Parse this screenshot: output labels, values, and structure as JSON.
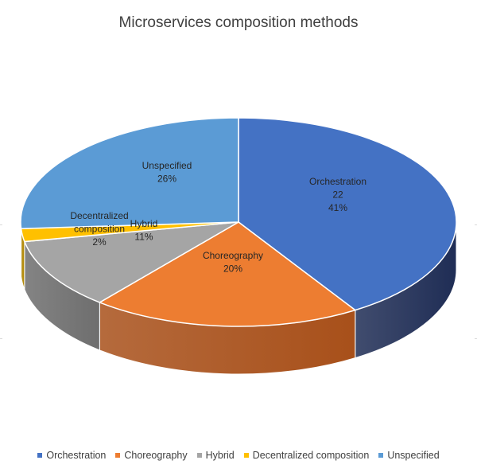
{
  "chart_data": {
    "type": "pie",
    "title": "Microservices composition methods",
    "slices": [
      {
        "name": "Orchestration",
        "value_label": "22",
        "percent": 41,
        "color": "#4472C4",
        "side_color": "#1F2D55"
      },
      {
        "name": "Choreography",
        "percent": 20,
        "color": "#ED7D31",
        "side_color": "#A8501A"
      },
      {
        "name": "Hybrid",
        "percent": 11,
        "color": "#A5A5A5",
        "side_color": "#6E6E6E"
      },
      {
        "name": "Decentralized composition",
        "percent": 2,
        "color": "#FFC000",
        "side_color": "#B08600"
      },
      {
        "name": "Unspecified",
        "percent": 26,
        "color": "#5B9BD5",
        "side_color": "#3A6FA0"
      }
    ],
    "legend_position": "bottom",
    "three_d": true
  }
}
